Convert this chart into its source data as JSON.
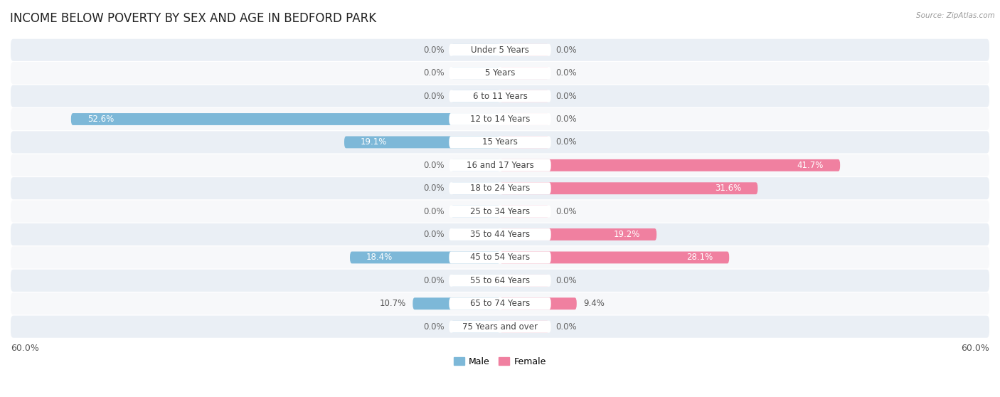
{
  "title": "INCOME BELOW POVERTY BY SEX AND AGE IN BEDFORD PARK",
  "source": "Source: ZipAtlas.com",
  "categories": [
    "Under 5 Years",
    "5 Years",
    "6 to 11 Years",
    "12 to 14 Years",
    "15 Years",
    "16 and 17 Years",
    "18 to 24 Years",
    "25 to 34 Years",
    "35 to 44 Years",
    "45 to 54 Years",
    "55 to 64 Years",
    "65 to 74 Years",
    "75 Years and over"
  ],
  "male": [
    0.0,
    0.0,
    0.0,
    52.6,
    19.1,
    0.0,
    0.0,
    0.0,
    0.0,
    18.4,
    0.0,
    10.7,
    0.0
  ],
  "female": [
    0.0,
    0.0,
    0.0,
    0.0,
    0.0,
    41.7,
    31.6,
    0.0,
    19.2,
    28.1,
    0.0,
    9.4,
    0.0
  ],
  "male_color": "#7db8d8",
  "female_color": "#f080a0",
  "male_stub_color": "#aacfe8",
  "female_stub_color": "#f8b8cc",
  "row_bg_odd": "#eaeff5",
  "row_bg_even": "#f7f8fa",
  "label_bg_color": "#ffffff",
  "xlim": 60.0,
  "stub_size": 6.0,
  "title_fontsize": 12,
  "cat_fontsize": 8.5,
  "val_fontsize": 8.5,
  "legend_male": "Male",
  "legend_female": "Female"
}
